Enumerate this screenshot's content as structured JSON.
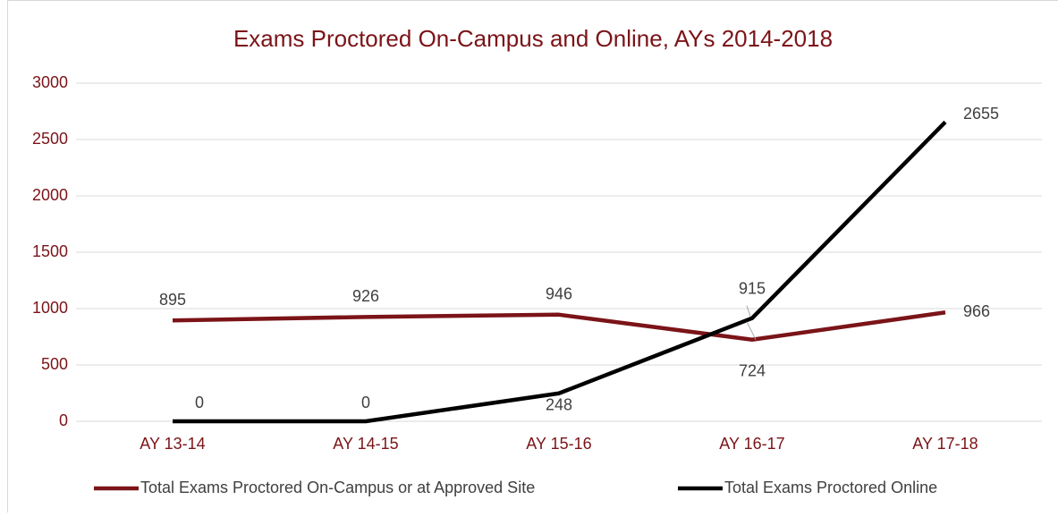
{
  "chart_data": {
    "type": "line",
    "title": "Exams Proctored On-Campus and Online, AYs 2014-2018",
    "categories": [
      "AY 13-14",
      "AY 14-15",
      "AY 15-16",
      "AY 16-17",
      "AY 17-18"
    ],
    "series": [
      {
        "name": "Total Exams Proctored On-Campus or at Approved Site",
        "color": "#7b1418",
        "values": [
          895,
          926,
          946,
          724,
          966
        ]
      },
      {
        "name": "Total Exams Proctored Online",
        "color": "#000000",
        "values": [
          0,
          0,
          248,
          915,
          2655
        ]
      }
    ],
    "ylim": [
      0,
      3000
    ],
    "yticks": [
      0,
      500,
      1000,
      1500,
      2000,
      2500,
      3000
    ],
    "grid": true,
    "legend": "bottom"
  }
}
